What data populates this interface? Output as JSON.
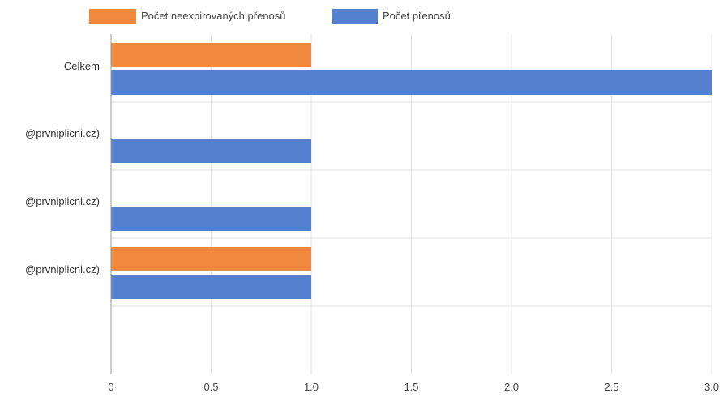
{
  "chart_data": {
    "type": "bar",
    "orientation": "horizontal",
    "categories": [
      "Celkem",
      "@prvniplicni.cz)",
      "@prvniplicni.cz)",
      "@prvniplicni.cz)",
      ""
    ],
    "series": [
      {
        "name": "Počet neexpirovaných přenosů",
        "color": "#f0883e",
        "values": [
          1,
          0,
          0,
          1,
          0
        ]
      },
      {
        "name": "Počet přenosů",
        "color": "#5580d0",
        "values": [
          3,
          1,
          1,
          1,
          0
        ]
      }
    ],
    "xlim": [
      0,
      3
    ],
    "xticks": [
      0,
      0.5,
      1,
      1.5,
      2,
      2.5,
      3
    ],
    "xtick_labels": [
      "0",
      "0.5",
      "1.0",
      "1.5",
      "2.0",
      "2.5",
      "3.0"
    ],
    "legend_position": "top",
    "grid": true,
    "title": "",
    "xlabel": "",
    "ylabel": ""
  }
}
